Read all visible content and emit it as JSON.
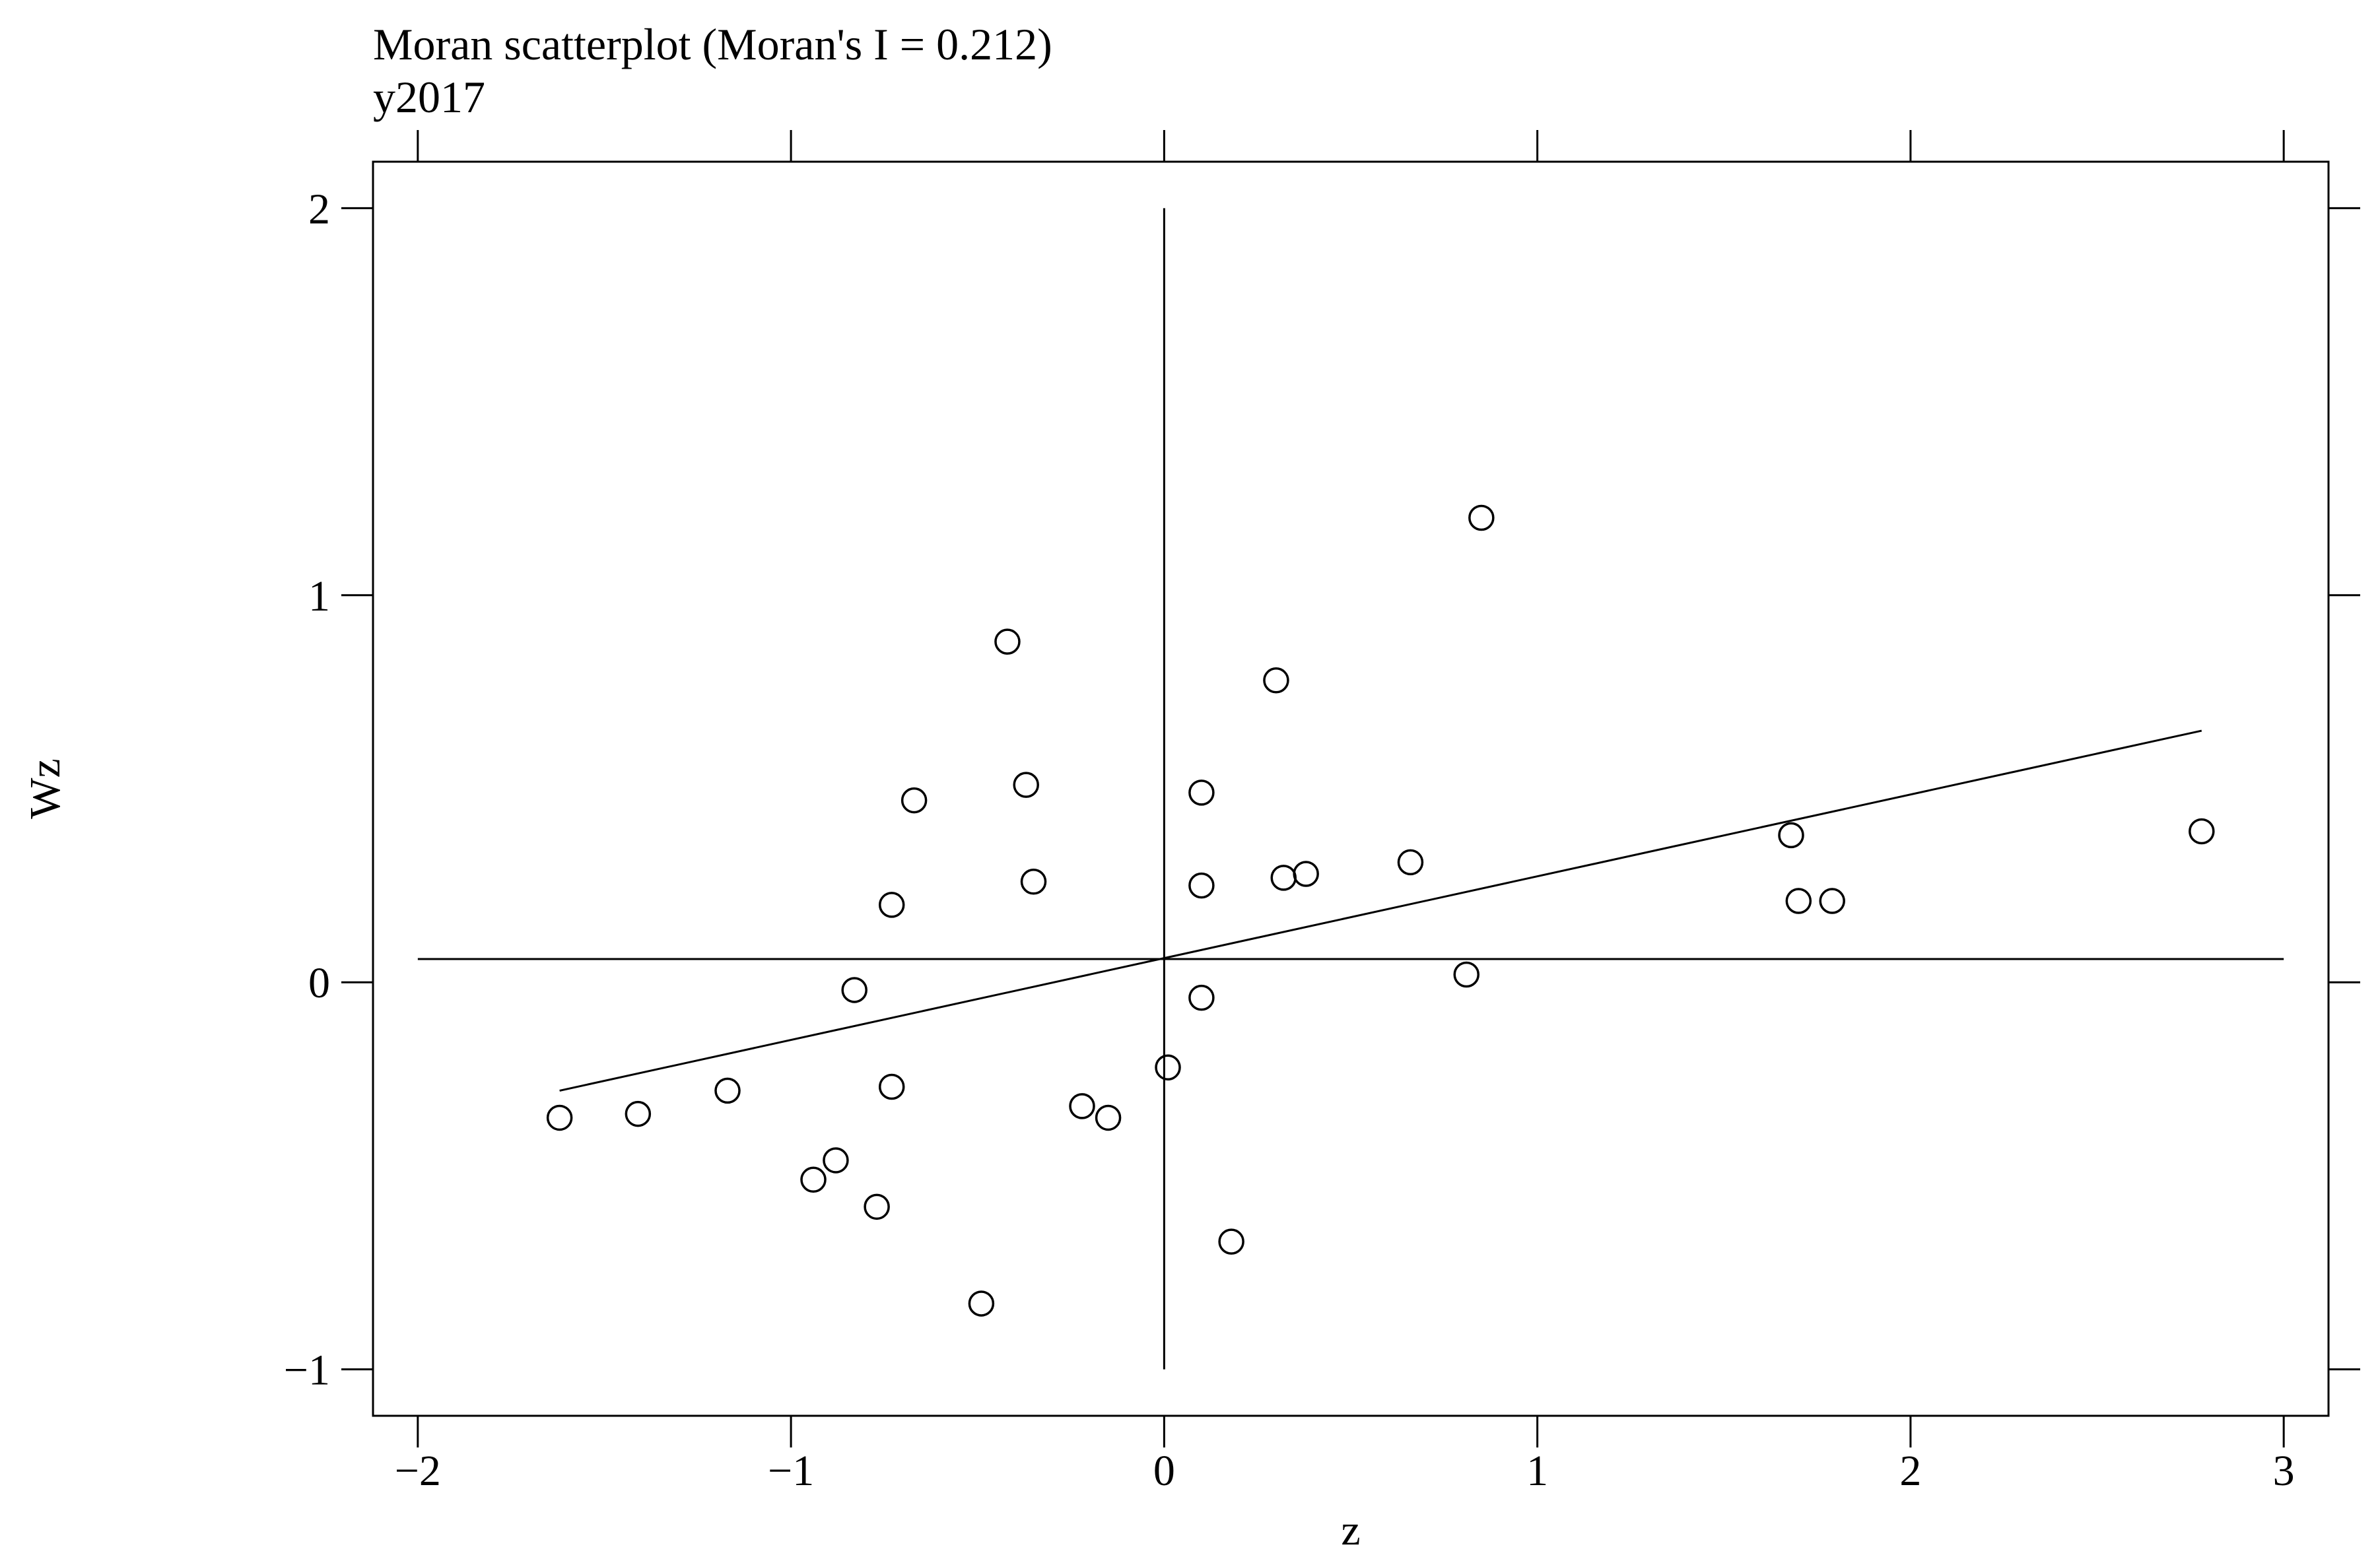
{
  "chart_data": {
    "type": "scatter",
    "title": "Moran scatterplot (Moran's I = 0.212)",
    "subtitle": "y2017",
    "xlabel": "z",
    "ylabel": "Wz",
    "xlim": [
      -2.12,
      3.12
    ],
    "ylim": [
      -1.12,
      2.12
    ],
    "xticks": [
      -2,
      -1,
      0,
      1,
      2,
      3
    ],
    "xtick_labels": [
      "−2",
      "−1",
      "0",
      "1",
      "2",
      "3"
    ],
    "yticks": [
      -1,
      0,
      1,
      2
    ],
    "ytick_labels": [
      "−1",
      "0",
      "1",
      "2"
    ],
    "grid": false,
    "reference_lines": {
      "vertical_x": 0,
      "horizontal_y": 0.06,
      "v_extent": [
        -1,
        2
      ],
      "h_extent": [
        -2,
        3
      ]
    },
    "fit_line": {
      "x": [
        -1.62,
        2.78
      ],
      "y": [
        -0.28,
        0.65
      ]
    },
    "points": [
      {
        "x": -1.62,
        "y": -0.35
      },
      {
        "x": -1.41,
        "y": -0.34
      },
      {
        "x": -1.17,
        "y": -0.28
      },
      {
        "x": -0.94,
        "y": -0.51
      },
      {
        "x": -0.88,
        "y": -0.46
      },
      {
        "x": -0.77,
        "y": -0.58
      },
      {
        "x": -0.83,
        "y": -0.02
      },
      {
        "x": -0.73,
        "y": -0.27
      },
      {
        "x": -0.73,
        "y": 0.2
      },
      {
        "x": -0.67,
        "y": 0.47
      },
      {
        "x": -0.49,
        "y": -0.83
      },
      {
        "x": -0.42,
        "y": 0.88
      },
      {
        "x": -0.37,
        "y": 0.51
      },
      {
        "x": -0.35,
        "y": 0.26
      },
      {
        "x": -0.22,
        "y": -0.32
      },
      {
        "x": -0.15,
        "y": -0.35
      },
      {
        "x": 0.01,
        "y": -0.22
      },
      {
        "x": 0.1,
        "y": -0.04
      },
      {
        "x": 0.1,
        "y": 0.25
      },
      {
        "x": 0.1,
        "y": 0.49
      },
      {
        "x": 0.18,
        "y": -0.67
      },
      {
        "x": 0.3,
        "y": 0.78
      },
      {
        "x": 0.32,
        "y": 0.27
      },
      {
        "x": 0.38,
        "y": 0.28
      },
      {
        "x": 0.66,
        "y": 0.31
      },
      {
        "x": 0.81,
        "y": 0.02
      },
      {
        "x": 0.85,
        "y": 1.2
      },
      {
        "x": 1.68,
        "y": 0.38
      },
      {
        "x": 1.7,
        "y": 0.21
      },
      {
        "x": 1.79,
        "y": 0.21
      },
      {
        "x": 2.78,
        "y": 0.39
      }
    ]
  }
}
